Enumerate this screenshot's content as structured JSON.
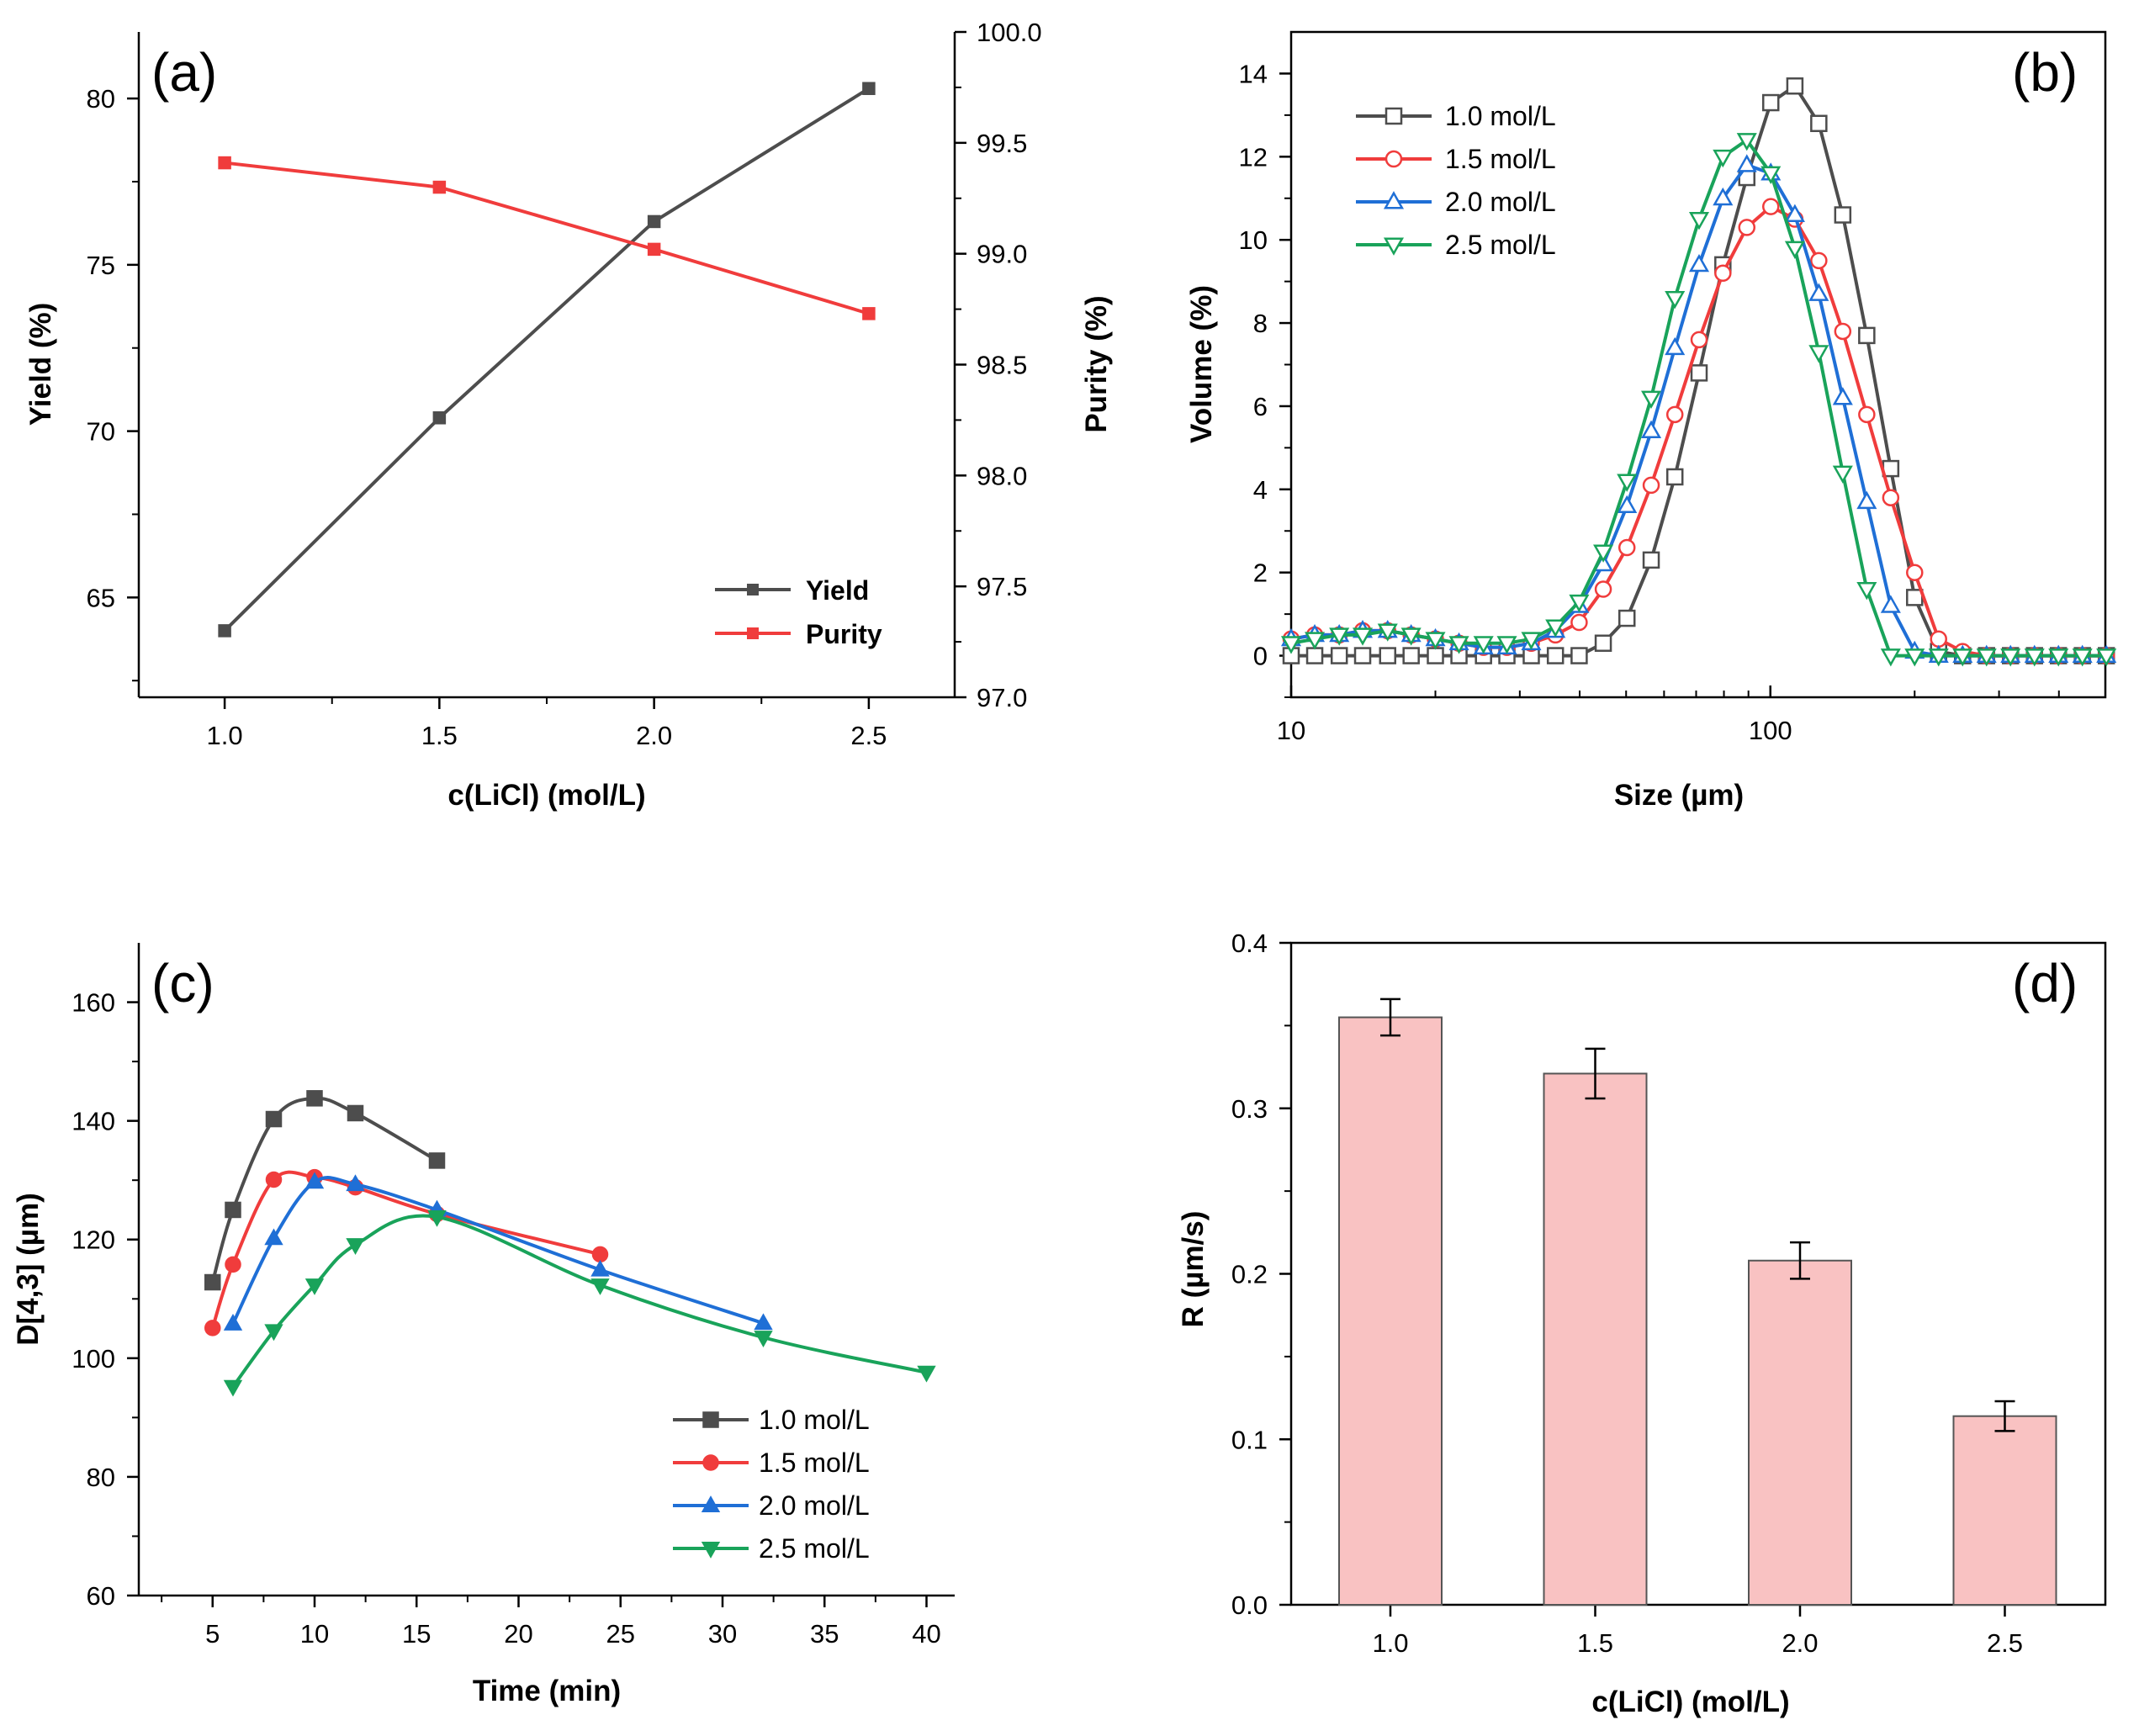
{
  "chart_data": [
    {
      "panel": "(a)",
      "type": "line",
      "x": [
        1.0,
        1.5,
        2.0,
        2.5
      ],
      "xlabel": "c(LiCl) (mol/L)",
      "xlim": [
        0.8,
        2.7
      ],
      "xticks": [
        "1.0",
        "1.5",
        "2.0",
        "2.5"
      ],
      "ylabel": "Yield (%)",
      "ylim": [
        62,
        82
      ],
      "yticks": [
        "65",
        "70",
        "75",
        "80"
      ],
      "y2label": "Purity (%)",
      "y2lim": [
        97.0,
        100.0
      ],
      "y2ticks": [
        "97.0",
        "97.5",
        "98.0",
        "98.5",
        "99.0",
        "99.5",
        "100.0"
      ],
      "legend_position": "bottom-right",
      "series": [
        {
          "name": "Yield",
          "axis": "left",
          "color": "#4d4d4d",
          "values": [
            64.0,
            70.4,
            76.3,
            80.3
          ]
        },
        {
          "name": "Purity",
          "axis": "right",
          "color": "#f03c3c",
          "values": [
            99.41,
            99.3,
            99.02,
            98.73
          ]
        }
      ]
    },
    {
      "panel": "(b)",
      "type": "line",
      "xscale": "log",
      "xlabel": "Size (µm)",
      "xlim": [
        10,
        500
      ],
      "xticks": [
        "10",
        "100"
      ],
      "ylabel": "Volume (%)",
      "ylim": [
        -1,
        15
      ],
      "yticks": [
        "0",
        "2",
        "4",
        "6",
        "8",
        "10",
        "12",
        "14"
      ],
      "legend_position": "top-left",
      "series": [
        {
          "name": "1.0 mol/L",
          "color": "#4d4d4d",
          "marker": "open-square",
          "x": [
            10,
            11.2,
            12.6,
            14.1,
            15.9,
            17.8,
            20,
            22.4,
            25.2,
            28.2,
            31.7,
            35.6,
            39.9,
            44.8,
            50.2,
            56.4,
            63.2,
            71,
            79.6,
            89.3,
            100.2,
            112.5,
            126.2,
            141.6,
            158.9,
            178.3,
            200,
            224.4,
            251.8,
            282.5,
            317,
            355.7,
            399.1,
            447.7,
            502.4
          ],
          "values": [
            0,
            0,
            0,
            0,
            0,
            0,
            0,
            0,
            0,
            0,
            0,
            0,
            0,
            0.3,
            0.9,
            2.3,
            4.3,
            6.8,
            9.4,
            11.5,
            13.3,
            13.7,
            12.8,
            10.6,
            7.7,
            4.5,
            1.4,
            0.1,
            0,
            0,
            0,
            0,
            0,
            0,
            0
          ]
        },
        {
          "name": "1.5 mol/L",
          "color": "#f03c3c",
          "marker": "open-circle",
          "x": [
            10,
            11.2,
            12.6,
            14.1,
            15.9,
            17.8,
            20,
            22.4,
            25.2,
            28.2,
            31.7,
            35.6,
            39.9,
            44.8,
            50.2,
            56.4,
            63.2,
            71,
            79.6,
            89.3,
            100.2,
            112.5,
            126.2,
            141.6,
            158.9,
            178.3,
            200,
            224.4,
            251.8,
            282.5,
            317,
            355.7,
            399.1,
            447.7,
            502.4
          ],
          "values": [
            0.4,
            0.5,
            0.5,
            0.6,
            0.6,
            0.5,
            0.4,
            0.3,
            0.2,
            0.2,
            0.3,
            0.5,
            0.8,
            1.6,
            2.6,
            4.1,
            5.8,
            7.6,
            9.2,
            10.3,
            10.8,
            10.5,
            9.5,
            7.8,
            5.8,
            3.8,
            2.0,
            0.4,
            0.1,
            0,
            0,
            0,
            0,
            0,
            0
          ]
        },
        {
          "name": "2.0 mol/L",
          "color": "#1f6fd6",
          "marker": "open-triangle-up",
          "x": [
            10,
            11.2,
            12.6,
            14.1,
            15.9,
            17.8,
            20,
            22.4,
            25.2,
            28.2,
            31.7,
            35.6,
            39.9,
            44.8,
            50.2,
            56.4,
            63.2,
            71,
            79.6,
            89.3,
            100.2,
            112.5,
            126.2,
            141.6,
            158.9,
            178.3,
            200,
            224.4,
            251.8,
            282.5,
            317,
            355.7,
            399.1,
            447.7,
            502.4
          ],
          "values": [
            0.4,
            0.5,
            0.5,
            0.6,
            0.6,
            0.5,
            0.4,
            0.3,
            0.2,
            0.2,
            0.3,
            0.6,
            1.2,
            2.2,
            3.6,
            5.4,
            7.4,
            9.4,
            11.0,
            11.8,
            11.6,
            10.6,
            8.7,
            6.2,
            3.7,
            1.2,
            0.1,
            0,
            0,
            0,
            0,
            0,
            0,
            0,
            0
          ]
        },
        {
          "name": "2.5 mol/L",
          "color": "#19a35a",
          "marker": "open-triangle-down",
          "x": [
            10,
            11.2,
            12.6,
            14.1,
            15.9,
            17.8,
            20,
            22.4,
            25.2,
            28.2,
            31.7,
            35.6,
            39.9,
            44.8,
            50.2,
            56.4,
            63.2,
            71,
            79.6,
            89.3,
            100.2,
            112.5,
            126.2,
            141.6,
            158.9,
            178.3,
            200,
            224.4,
            251.8,
            282.5,
            317,
            355.7,
            399.1,
            447.7,
            502.4
          ],
          "values": [
            0.3,
            0.4,
            0.5,
            0.5,
            0.6,
            0.5,
            0.4,
            0.3,
            0.3,
            0.3,
            0.4,
            0.7,
            1.3,
            2.5,
            4.2,
            6.2,
            8.6,
            10.5,
            12.0,
            12.4,
            11.6,
            9.8,
            7.3,
            4.4,
            1.6,
            0,
            0,
            0,
            0,
            0,
            0,
            0,
            0,
            0,
            0
          ]
        }
      ]
    },
    {
      "panel": "(c)",
      "type": "line",
      "xlabel": "Time (min)",
      "xlim": [
        2,
        42
      ],
      "xticks": [
        "5",
        "10",
        "15",
        "20",
        "25",
        "30",
        "35",
        "40"
      ],
      "ylabel": "D[4,3] (µm)",
      "ylim": [
        60,
        170
      ],
      "yticks": [
        "60",
        "80",
        "100",
        "120",
        "140",
        "160"
      ],
      "legend_position": "bottom-right",
      "series": [
        {
          "name": "1.0 mol/L",
          "color": "#4d4d4d",
          "marker": "square",
          "x": [
            5,
            6,
            8,
            10,
            12,
            16
          ],
          "values": [
            112.8,
            125.0,
            140.3,
            143.8,
            141.3,
            133.3
          ]
        },
        {
          "name": "1.5 mol/L",
          "color": "#f03c3c",
          "marker": "circle",
          "x": [
            5,
            6,
            8,
            10,
            12,
            16,
            24
          ],
          "values": [
            105.1,
            115.8,
            130.1,
            130.5,
            128.8,
            124.3,
            117.5
          ]
        },
        {
          "name": "2.0 mol/L",
          "color": "#1f6fd6",
          "marker": "triangle-up",
          "x": [
            6,
            8,
            10,
            12,
            16,
            24,
            32
          ],
          "values": [
            105.8,
            120.2,
            129.7,
            129.3,
            125.0,
            114.9,
            105.9
          ]
        },
        {
          "name": "2.5 mol/L",
          "color": "#19a35a",
          "marker": "triangle-down",
          "x": [
            6,
            8,
            10,
            12,
            16,
            24,
            32,
            40
          ],
          "values": [
            95.2,
            104.6,
            112.3,
            119.1,
            123.8,
            112.3,
            103.5,
            97.6
          ]
        }
      ]
    },
    {
      "panel": "(d)",
      "type": "bar",
      "categories": [
        "1.0",
        "1.5",
        "2.0",
        "2.5"
      ],
      "values": [
        0.355,
        0.321,
        0.208,
        0.114
      ],
      "errors": [
        0.011,
        0.015,
        0.011,
        0.009
      ],
      "xlabel": "c(LiCl) (mol/L)",
      "ylabel": "R (µm/s)",
      "ylim": [
        0,
        0.4
      ],
      "yticks": [
        "0.0",
        "0.1",
        "0.2",
        "0.3",
        "0.4"
      ],
      "bar_color": "#f9c2c2",
      "edge_color": "#555555"
    }
  ]
}
